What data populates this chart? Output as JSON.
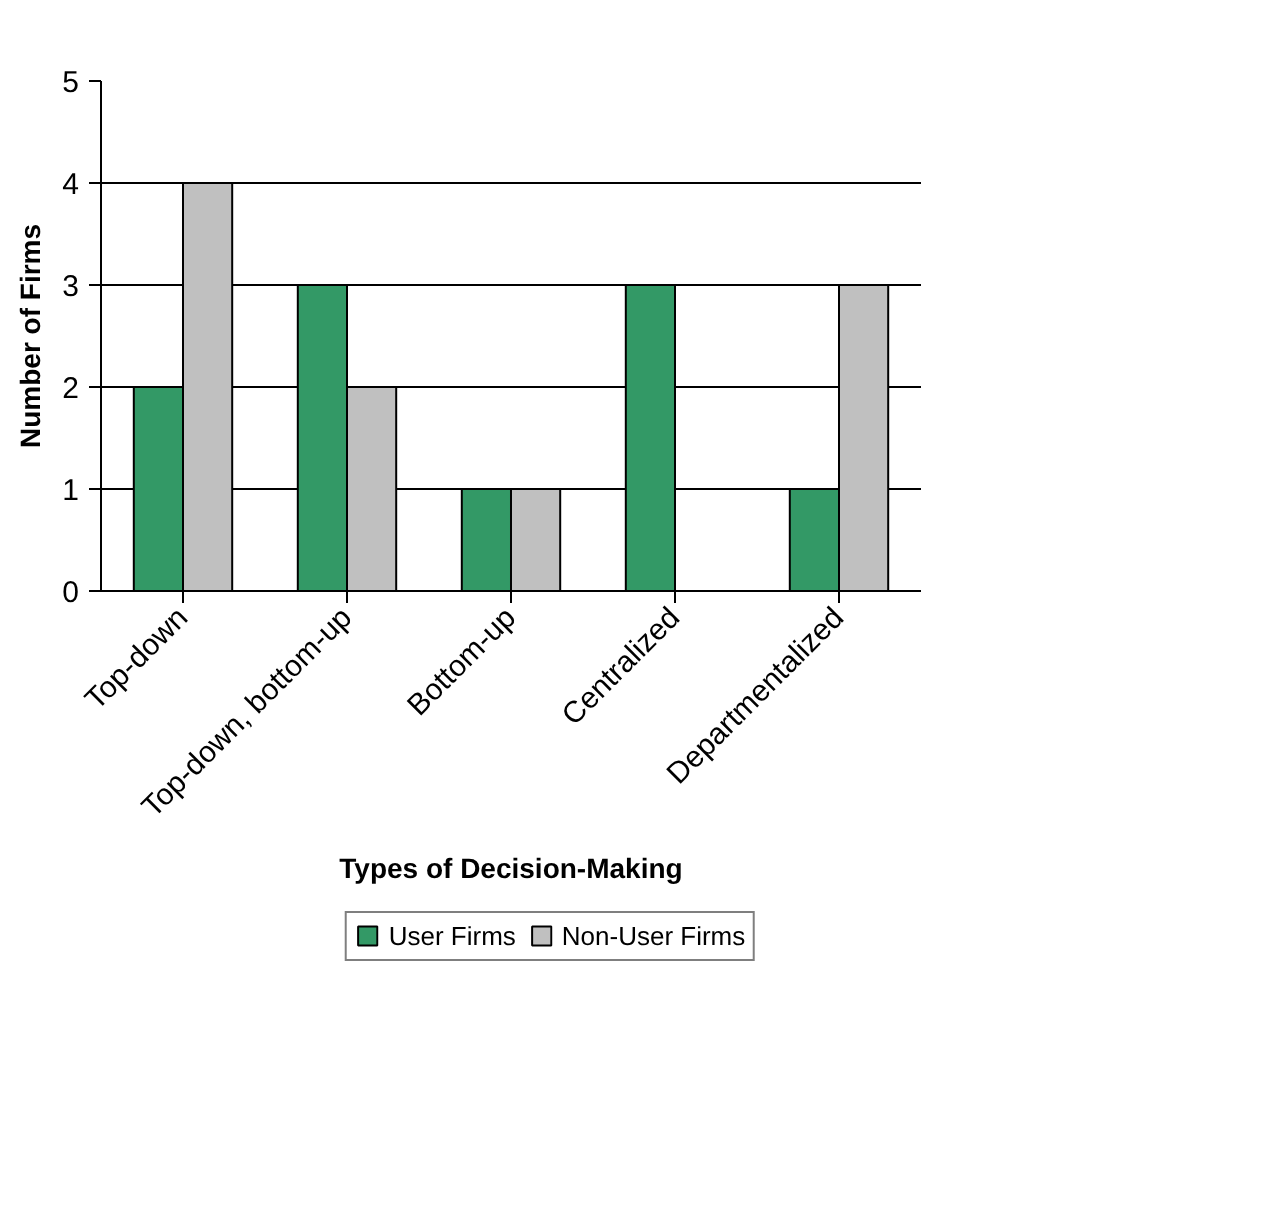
{
  "chart_data": {
    "type": "bar",
    "xlabel": "Types of Decision-Making",
    "ylabel": "Number of Firms",
    "categories": [
      "Top-down",
      "Top-down, bottom-up",
      "Bottom-up",
      "Centralized",
      "Departmentalized"
    ],
    "series": [
      {
        "name": "User Firms",
        "color": "#339966",
        "values": [
          2,
          3,
          1,
          3,
          1
        ]
      },
      {
        "name": "Non-User Firms",
        "color": "#c0c0c0",
        "values": [
          4,
          2,
          1,
          0,
          3
        ]
      }
    ],
    "ylim": [
      0,
      5
    ],
    "yticks": [
      0,
      1,
      2,
      3,
      4,
      5
    ],
    "grid": "y",
    "legend": "bottom"
  }
}
